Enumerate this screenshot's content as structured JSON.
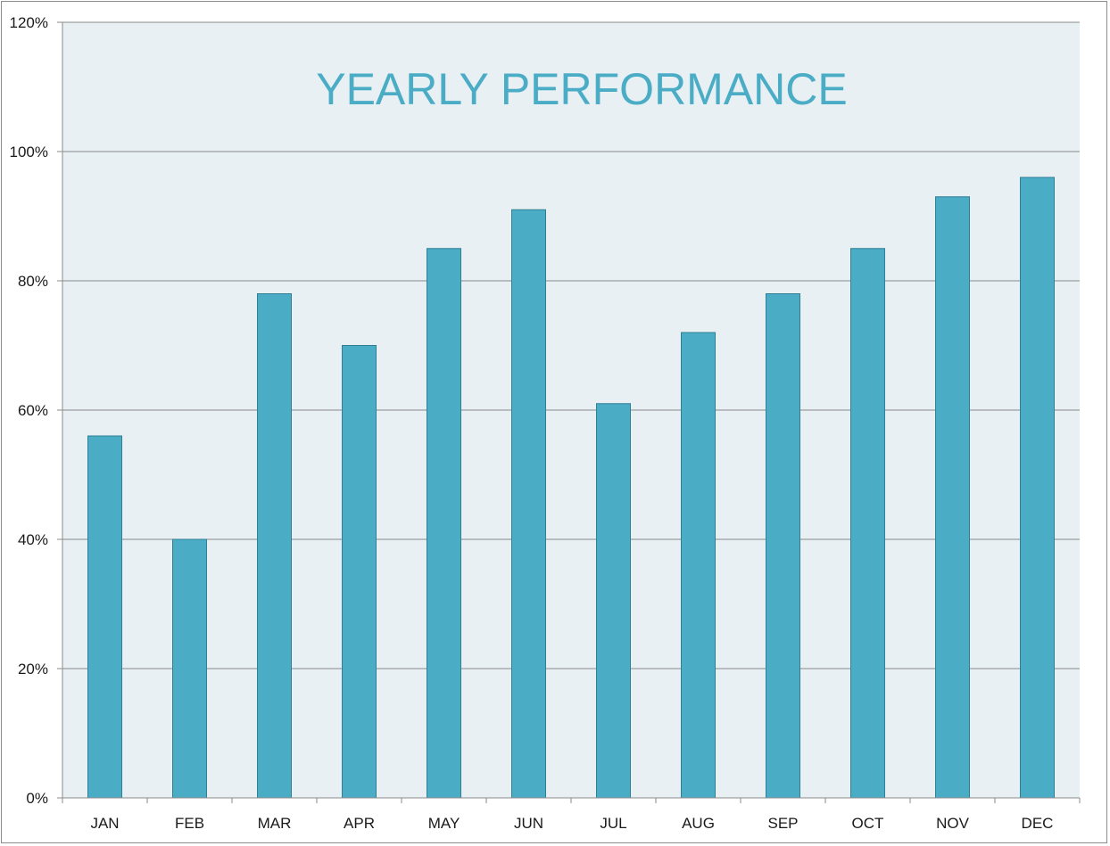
{
  "chart_data": {
    "type": "bar",
    "title": "YEARLY PERFORMANCE",
    "xlabel": "",
    "ylabel": "",
    "categories": [
      "JAN",
      "FEB",
      "MAR",
      "APR",
      "MAY",
      "JUN",
      "JUL",
      "AUG",
      "SEP",
      "OCT",
      "NOV",
      "DEC"
    ],
    "values": [
      0.56,
      0.4,
      0.78,
      0.7,
      0.85,
      0.91,
      0.61,
      0.72,
      0.78,
      0.85,
      0.93,
      0.96
    ],
    "ylim": [
      0,
      1.2
    ],
    "yticks": [
      0,
      0.2,
      0.4,
      0.6,
      0.8,
      1.0,
      1.2
    ],
    "ytick_labels": [
      "0%",
      "20%",
      "40%",
      "60%",
      "80%",
      "100%",
      "120%"
    ],
    "grid": true,
    "legend": "none"
  },
  "colors": {
    "bar_fill": "#4bacc6",
    "bar_stroke": "#2f7f95",
    "plot_background": "#e9f0f4",
    "gridline": "#8a8a8a",
    "axis": "#8a8a8a",
    "title": "#4bacc6"
  }
}
